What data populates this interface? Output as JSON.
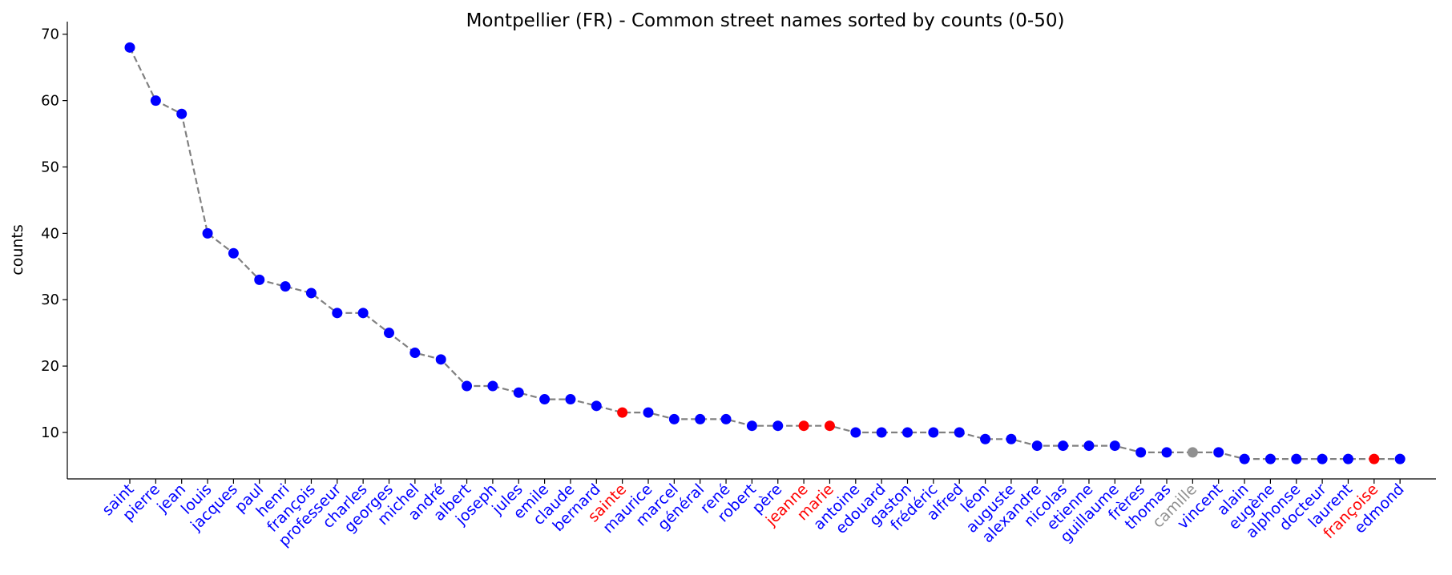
{
  "chart_data": {
    "type": "line",
    "title": "Montpellier (FR) - Common street names sorted by counts (0-50)",
    "xlabel": "",
    "ylabel": "counts",
    "ylim": [
      3,
      70
    ],
    "yticks": [
      10,
      20,
      30,
      40,
      50,
      60,
      70
    ],
    "grid": false,
    "line_style": "dashed",
    "line_color": "#808080",
    "colors": {
      "blue": "#0000ff",
      "red": "#ff0000",
      "gray": "#909090"
    },
    "points": [
      {
        "label": "saint",
        "value": 68,
        "color": "blue"
      },
      {
        "label": "pierre",
        "value": 60,
        "color": "blue"
      },
      {
        "label": "jean",
        "value": 58,
        "color": "blue"
      },
      {
        "label": "louis",
        "value": 40,
        "color": "blue"
      },
      {
        "label": "jacques",
        "value": 37,
        "color": "blue"
      },
      {
        "label": "paul",
        "value": 33,
        "color": "blue"
      },
      {
        "label": "henri",
        "value": 32,
        "color": "blue"
      },
      {
        "label": "françois",
        "value": 31,
        "color": "blue"
      },
      {
        "label": "professeur",
        "value": 28,
        "color": "blue"
      },
      {
        "label": "charles",
        "value": 28,
        "color": "blue"
      },
      {
        "label": "georges",
        "value": 25,
        "color": "blue"
      },
      {
        "label": "michel",
        "value": 22,
        "color": "blue"
      },
      {
        "label": "andré",
        "value": 21,
        "color": "blue"
      },
      {
        "label": "albert",
        "value": 17,
        "color": "blue"
      },
      {
        "label": "joseph",
        "value": 17,
        "color": "blue"
      },
      {
        "label": "jules",
        "value": 16,
        "color": "blue"
      },
      {
        "label": "emile",
        "value": 15,
        "color": "blue"
      },
      {
        "label": "claude",
        "value": 15,
        "color": "blue"
      },
      {
        "label": "bernard",
        "value": 14,
        "color": "blue"
      },
      {
        "label": "sainte",
        "value": 13,
        "color": "red"
      },
      {
        "label": "maurice",
        "value": 13,
        "color": "blue"
      },
      {
        "label": "marcel",
        "value": 12,
        "color": "blue"
      },
      {
        "label": "général",
        "value": 12,
        "color": "blue"
      },
      {
        "label": "rené",
        "value": 12,
        "color": "blue"
      },
      {
        "label": "robert",
        "value": 11,
        "color": "blue"
      },
      {
        "label": "père",
        "value": 11,
        "color": "blue"
      },
      {
        "label": "jeanne",
        "value": 11,
        "color": "red"
      },
      {
        "label": "marie",
        "value": 11,
        "color": "red"
      },
      {
        "label": "antoine",
        "value": 10,
        "color": "blue"
      },
      {
        "label": "edouard",
        "value": 10,
        "color": "blue"
      },
      {
        "label": "gaston",
        "value": 10,
        "color": "blue"
      },
      {
        "label": "frédéric",
        "value": 10,
        "color": "blue"
      },
      {
        "label": "alfred",
        "value": 10,
        "color": "blue"
      },
      {
        "label": "léon",
        "value": 9,
        "color": "blue"
      },
      {
        "label": "auguste",
        "value": 9,
        "color": "blue"
      },
      {
        "label": "alexandre",
        "value": 8,
        "color": "blue"
      },
      {
        "label": "nicolas",
        "value": 8,
        "color": "blue"
      },
      {
        "label": "etienne",
        "value": 8,
        "color": "blue"
      },
      {
        "label": "guillaume",
        "value": 8,
        "color": "blue"
      },
      {
        "label": "frères",
        "value": 7,
        "color": "blue"
      },
      {
        "label": "thomas",
        "value": 7,
        "color": "blue"
      },
      {
        "label": "camille",
        "value": 7,
        "color": "gray"
      },
      {
        "label": "vincent",
        "value": 7,
        "color": "blue"
      },
      {
        "label": "alain",
        "value": 6,
        "color": "blue"
      },
      {
        "label": "eugène",
        "value": 6,
        "color": "blue"
      },
      {
        "label": "alphonse",
        "value": 6,
        "color": "blue"
      },
      {
        "label": "docteur",
        "value": 6,
        "color": "blue"
      },
      {
        "label": "laurent",
        "value": 6,
        "color": "blue"
      },
      {
        "label": "françoise",
        "value": 6,
        "color": "red"
      },
      {
        "label": "edmond",
        "value": 6,
        "color": "blue"
      }
    ]
  }
}
